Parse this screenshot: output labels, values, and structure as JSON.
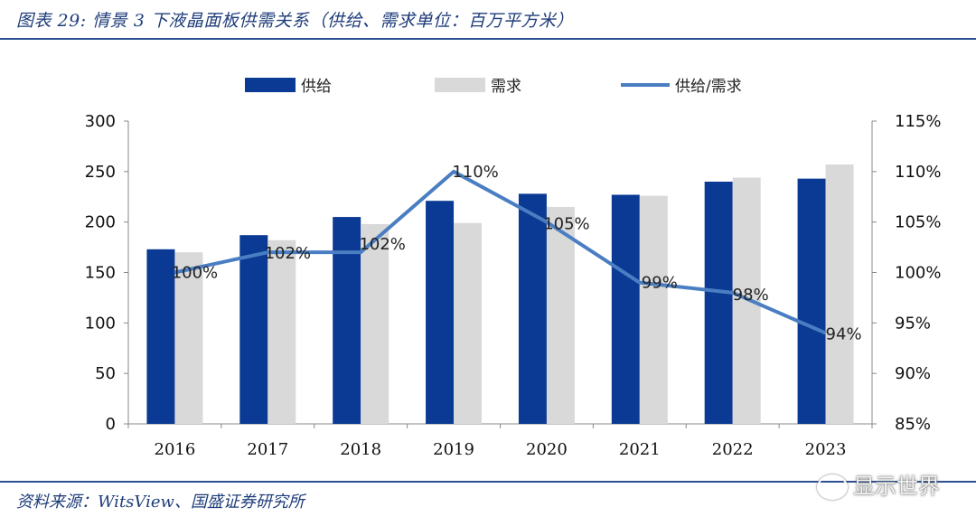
{
  "header": {
    "title": "图表 29: 情景 3 下液晶面板供需关系（供给、需求单位：百万平方米）"
  },
  "footer": {
    "source": "资料来源：WitsView、国盛证券研究所"
  },
  "watermark": {
    "text": "显示世界"
  },
  "colors": {
    "supply": "#0a3a94",
    "demand": "#d9d9d9",
    "ratio": "#4a7ec2",
    "title": "#1f3d7a"
  },
  "chart_data": {
    "type": "bar",
    "categories": [
      "2016",
      "2017",
      "2018",
      "2019",
      "2020",
      "2021",
      "2022",
      "2023"
    ],
    "series": [
      {
        "name": "供给",
        "type": "bar",
        "axis": "left",
        "values": [
          173,
          187,
          205,
          221,
          228,
          227,
          240,
          243
        ]
      },
      {
        "name": "需求",
        "type": "bar",
        "axis": "left",
        "values": [
          170,
          182,
          198,
          199,
          215,
          226,
          244,
          257
        ]
      },
      {
        "name": "供给/需求",
        "type": "line",
        "axis": "right",
        "values": [
          100,
          102,
          102,
          110,
          105,
          99,
          98,
          94
        ]
      }
    ],
    "data_labels": [
      "100%",
      "102%",
      "102%",
      "110%",
      "105%",
      "99%",
      "98%",
      "94%"
    ],
    "left_axis": {
      "ylim": [
        0,
        300
      ],
      "ticks": [
        "0",
        "50",
        "100",
        "150",
        "200",
        "250",
        "300"
      ]
    },
    "right_axis": {
      "ylim": [
        85,
        115
      ],
      "ticks": [
        "85%",
        "90%",
        "95%",
        "100%",
        "105%",
        "110%",
        "115%"
      ]
    },
    "legend": {
      "position": "top",
      "items": [
        "供给",
        "需求",
        "供给/需求"
      ]
    }
  }
}
